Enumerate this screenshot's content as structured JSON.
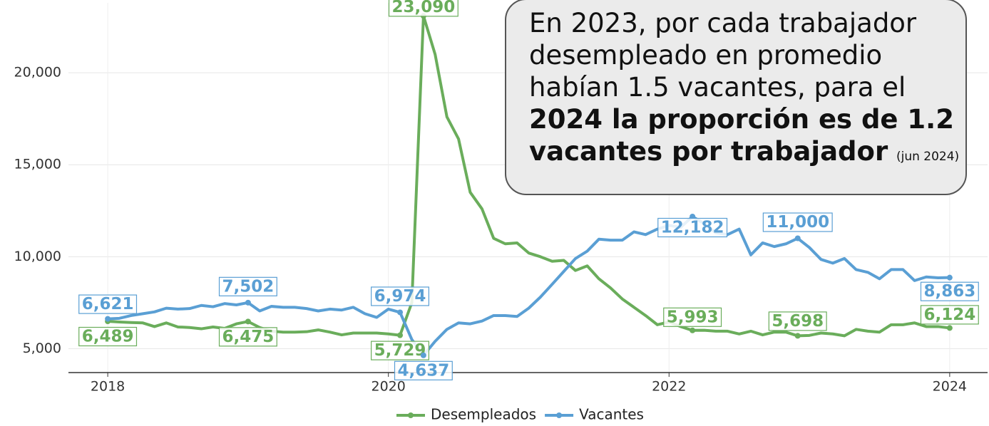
{
  "chart_data": {
    "type": "line",
    "annotation": {
      "text": "En 2023, por cada trabajador desempleado en promedio habían 1.5 vacantes, para el",
      "bold": "2024 la proporción es de 1.2 vacantes por trabajador",
      "note": "(jun 2024)"
    },
    "x": [
      2018,
      2018.083,
      2018.167,
      2018.25,
      2018.333,
      2018.417,
      2018.5,
      2018.583,
      2018.667,
      2018.75,
      2018.833,
      2018.917,
      2019,
      2019.083,
      2019.167,
      2019.25,
      2019.333,
      2019.417,
      2019.5,
      2019.583,
      2019.667,
      2019.75,
      2019.833,
      2019.917,
      2020,
      2020.083,
      2020.167,
      2020.25,
      2020.333,
      2020.417,
      2020.5,
      2020.583,
      2020.667,
      2020.75,
      2020.833,
      2020.917,
      2021,
      2021.083,
      2021.167,
      2021.25,
      2021.333,
      2021.417,
      2021.5,
      2021.583,
      2021.667,
      2021.75,
      2021.833,
      2021.917,
      2022,
      2022.083,
      2022.167,
      2022.25,
      2022.333,
      2022.417,
      2022.5,
      2022.583,
      2022.667,
      2022.75,
      2022.833,
      2022.917,
      2023,
      2023.083,
      2023.167,
      2023.25,
      2023.333,
      2023.417,
      2023.5,
      2023.583,
      2023.667,
      2023.75,
      2023.833,
      2023.917,
      2024
    ],
    "series": [
      {
        "name": "Desempleados",
        "color": "#6aad5b",
        "values": [
          6489,
          6450,
          6420,
          6400,
          6200,
          6400,
          6180,
          6150,
          6080,
          6180,
          6100,
          6350,
          6475,
          6150,
          5950,
          5900,
          5900,
          5920,
          6020,
          5900,
          5750,
          5850,
          5850,
          5850,
          5800,
          5729,
          7500,
          23090,
          21000,
          17600,
          16400,
          13500,
          12600,
          11000,
          10700,
          10750,
          10200,
          10000,
          9750,
          9800,
          9250,
          9500,
          8800,
          8300,
          7700,
          7250,
          6800,
          6300,
          6450,
          6200,
          5993,
          6000,
          5950,
          5950,
          5800,
          5950,
          5750,
          5900,
          5900,
          5698,
          5720,
          5850,
          5800,
          5700,
          6050,
          5950,
          5900,
          6300,
          6300,
          6400,
          6200,
          6200,
          6124
        ],
        "value_labels": [
          "6,489",
          null,
          null,
          null,
          null,
          null,
          null,
          null,
          null,
          null,
          null,
          null,
          "6,475",
          null,
          null,
          null,
          null,
          null,
          null,
          null,
          null,
          null,
          null,
          null,
          null,
          "5,729",
          null,
          "23,090",
          null,
          null,
          null,
          null,
          null,
          null,
          null,
          null,
          null,
          null,
          null,
          null,
          null,
          null,
          null,
          null,
          null,
          null,
          null,
          null,
          null,
          null,
          "5,993",
          null,
          null,
          null,
          null,
          null,
          null,
          null,
          null,
          "5,698",
          null,
          null,
          null,
          null,
          null,
          null,
          null,
          null,
          null,
          null,
          null,
          null,
          "6,124"
        ]
      },
      {
        "name": "Vacantes",
        "color": "#5a9fd4",
        "values": [
          6621,
          6650,
          6800,
          6900,
          7000,
          7200,
          7150,
          7180,
          7350,
          7280,
          7450,
          7380,
          7502,
          7050,
          7300,
          7250,
          7250,
          7180,
          7050,
          7150,
          7100,
          7250,
          6900,
          6700,
          7150,
          6974,
          5500,
          4637,
          5400,
          6050,
          6400,
          6350,
          6500,
          6800,
          6800,
          6750,
          7200,
          7800,
          8500,
          9200,
          9900,
          10300,
          10950,
          10900,
          10900,
          11350,
          11200,
          11500,
          11700,
          11600,
          12182,
          11800,
          11300,
          11200,
          11500,
          10100,
          10750,
          10550,
          10700,
          11000,
          10500,
          9850,
          9650,
          9900,
          9300,
          9150,
          8800,
          9300,
          9300,
          8700,
          8900,
          8850,
          8863
        ],
        "value_labels": [
          "6,621",
          null,
          null,
          null,
          null,
          null,
          null,
          null,
          null,
          null,
          null,
          null,
          "7,502",
          null,
          null,
          null,
          null,
          null,
          null,
          null,
          null,
          null,
          null,
          null,
          null,
          "6,974",
          null,
          "4,637",
          null,
          null,
          null,
          null,
          null,
          null,
          null,
          null,
          null,
          null,
          null,
          null,
          null,
          null,
          null,
          null,
          null,
          null,
          null,
          null,
          null,
          null,
          "12,182",
          null,
          null,
          null,
          null,
          null,
          null,
          null,
          null,
          "11,000",
          null,
          null,
          null,
          null,
          null,
          null,
          null,
          null,
          null,
          null,
          null,
          null,
          "8,863"
        ]
      }
    ],
    "xlim": [
      2017.72,
      2024.27
    ],
    "xticks": [
      2018,
      2020,
      2022,
      2024
    ],
    "ylim": [
      3700,
      23800
    ],
    "yticks": [
      {
        "value": 5000,
        "label": "5,000"
      },
      {
        "value": 10000,
        "label": "10,000"
      },
      {
        "value": 15000,
        "label": "15,000"
      },
      {
        "value": 20000,
        "label": "20,000"
      }
    ],
    "grid": true,
    "legend": "bottom"
  }
}
